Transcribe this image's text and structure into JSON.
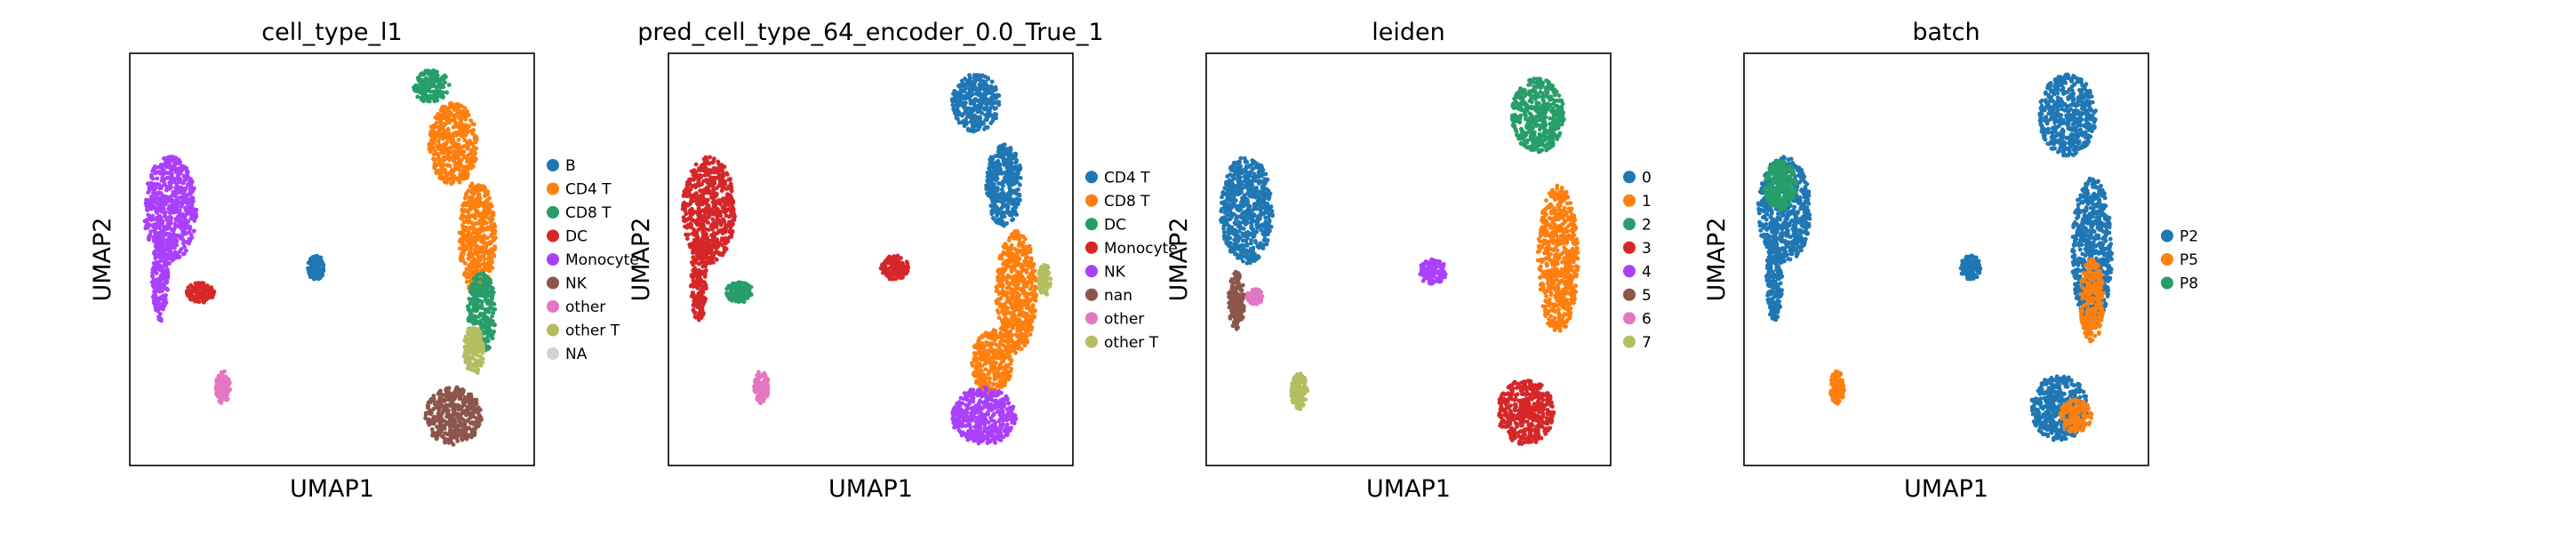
{
  "figure": {
    "background": "#ffffff"
  },
  "chart_data": [
    {
      "type": "scatter",
      "title": "cell_type_l1",
      "xlabel": "UMAP1",
      "ylabel": "UMAP2",
      "legend_position": "right",
      "grid": false,
      "ticks": false,
      "legend": [
        {
          "label": "B",
          "color": "#1f77b4"
        },
        {
          "label": "CD4 T",
          "color": "#ff7f0e"
        },
        {
          "label": "CD8 T",
          "color": "#279e68"
        },
        {
          "label": "DC",
          "color": "#d62728"
        },
        {
          "label": "Monocyte",
          "color": "#aa40fc"
        },
        {
          "label": "NK",
          "color": "#8c564b"
        },
        {
          "label": "other",
          "color": "#e377c2"
        },
        {
          "label": "other T",
          "color": "#b5bd61"
        },
        {
          "label": "NA",
          "color": "#d3d3d3"
        }
      ],
      "clusters": [
        {
          "cat": 4,
          "shape": "blob",
          "cx": 0.1,
          "cy": 0.62,
          "rx": 0.065,
          "ry": 0.13
        },
        {
          "cat": 4,
          "shape": "blob",
          "cx": 0.075,
          "cy": 0.45,
          "rx": 0.02,
          "ry": 0.1
        },
        {
          "cat": 3,
          "shape": "blob",
          "cx": 0.175,
          "cy": 0.42,
          "rx": 0.035,
          "ry": 0.025
        },
        {
          "cat": 0,
          "shape": "blob",
          "cx": 0.46,
          "cy": 0.48,
          "rx": 0.022,
          "ry": 0.03
        },
        {
          "cat": 6,
          "shape": "blob",
          "cx": 0.23,
          "cy": 0.19,
          "rx": 0.018,
          "ry": 0.04
        },
        {
          "cat": 2,
          "shape": "blob",
          "cx": 0.745,
          "cy": 0.92,
          "rx": 0.045,
          "ry": 0.04
        },
        {
          "cat": 1,
          "shape": "blob",
          "cx": 0.8,
          "cy": 0.78,
          "rx": 0.06,
          "ry": 0.1
        },
        {
          "cat": 1,
          "shape": "blob",
          "cx": 0.86,
          "cy": 0.55,
          "rx": 0.045,
          "ry": 0.14
        },
        {
          "cat": 2,
          "shape": "blob",
          "cx": 0.87,
          "cy": 0.37,
          "rx": 0.035,
          "ry": 0.1
        },
        {
          "cat": 7,
          "shape": "blob",
          "cx": 0.85,
          "cy": 0.28,
          "rx": 0.025,
          "ry": 0.06
        },
        {
          "cat": 5,
          "shape": "blob",
          "cx": 0.8,
          "cy": 0.12,
          "rx": 0.07,
          "ry": 0.07
        }
      ]
    },
    {
      "type": "scatter",
      "title": "pred_cell_type_64_encoder_0.0_True_1",
      "xlabel": "UMAP1",
      "ylabel": "UMAP2",
      "legend_position": "right",
      "grid": false,
      "ticks": false,
      "legend": [
        {
          "label": "CD4 T",
          "color": "#1f77b4"
        },
        {
          "label": "CD8 T",
          "color": "#ff7f0e"
        },
        {
          "label": "DC",
          "color": "#279e68"
        },
        {
          "label": "Monocyte",
          "color": "#d62728"
        },
        {
          "label": "NK",
          "color": "#aa40fc"
        },
        {
          "label": "nan",
          "color": "#8c564b"
        },
        {
          "label": "other",
          "color": "#e377c2"
        },
        {
          "label": "other T",
          "color": "#b5bd61"
        }
      ],
      "clusters": [
        {
          "cat": 3,
          "shape": "blob",
          "cx": 0.1,
          "cy": 0.62,
          "rx": 0.065,
          "ry": 0.13
        },
        {
          "cat": 3,
          "shape": "blob",
          "cx": 0.075,
          "cy": 0.45,
          "rx": 0.02,
          "ry": 0.1
        },
        {
          "cat": 2,
          "shape": "blob",
          "cx": 0.175,
          "cy": 0.42,
          "rx": 0.035,
          "ry": 0.025
        },
        {
          "cat": 3,
          "shape": "blob",
          "cx": 0.56,
          "cy": 0.48,
          "rx": 0.035,
          "ry": 0.03
        },
        {
          "cat": 6,
          "shape": "blob",
          "cx": 0.23,
          "cy": 0.19,
          "rx": 0.018,
          "ry": 0.04
        },
        {
          "cat": 0,
          "shape": "blob",
          "cx": 0.76,
          "cy": 0.88,
          "rx": 0.06,
          "ry": 0.07
        },
        {
          "cat": 0,
          "shape": "blob",
          "cx": 0.83,
          "cy": 0.68,
          "rx": 0.045,
          "ry": 0.1
        },
        {
          "cat": 1,
          "shape": "blob",
          "cx": 0.86,
          "cy": 0.42,
          "rx": 0.05,
          "ry": 0.15
        },
        {
          "cat": 1,
          "shape": "blob",
          "cx": 0.8,
          "cy": 0.25,
          "rx": 0.05,
          "ry": 0.08
        },
        {
          "cat": 4,
          "shape": "blob",
          "cx": 0.78,
          "cy": 0.12,
          "rx": 0.08,
          "ry": 0.07
        },
        {
          "cat": 7,
          "shape": "blob",
          "cx": 0.93,
          "cy": 0.45,
          "rx": 0.015,
          "ry": 0.04
        }
      ]
    },
    {
      "type": "scatter",
      "title": "leiden",
      "xlabel": "UMAP1",
      "ylabel": "UMAP2",
      "legend_position": "right",
      "grid": false,
      "ticks": false,
      "legend": [
        {
          "label": "0",
          "color": "#1f77b4"
        },
        {
          "label": "1",
          "color": "#ff7f0e"
        },
        {
          "label": "2",
          "color": "#279e68"
        },
        {
          "label": "3",
          "color": "#d62728"
        },
        {
          "label": "4",
          "color": "#aa40fc"
        },
        {
          "label": "5",
          "color": "#8c564b"
        },
        {
          "label": "6",
          "color": "#e377c2"
        },
        {
          "label": "7",
          "color": "#b5bd61"
        }
      ],
      "clusters": [
        {
          "cat": 0,
          "shape": "blob",
          "cx": 0.1,
          "cy": 0.62,
          "rx": 0.065,
          "ry": 0.13
        },
        {
          "cat": 5,
          "shape": "blob",
          "cx": 0.075,
          "cy": 0.4,
          "rx": 0.02,
          "ry": 0.07
        },
        {
          "cat": 6,
          "shape": "blob",
          "cx": 0.12,
          "cy": 0.41,
          "rx": 0.02,
          "ry": 0.02
        },
        {
          "cat": 4,
          "shape": "blob",
          "cx": 0.56,
          "cy": 0.47,
          "rx": 0.035,
          "ry": 0.03
        },
        {
          "cat": 7,
          "shape": "blob",
          "cx": 0.23,
          "cy": 0.18,
          "rx": 0.02,
          "ry": 0.045
        },
        {
          "cat": 2,
          "shape": "blob",
          "cx": 0.82,
          "cy": 0.85,
          "rx": 0.065,
          "ry": 0.09
        },
        {
          "cat": 1,
          "shape": "blob",
          "cx": 0.87,
          "cy": 0.5,
          "rx": 0.05,
          "ry": 0.18
        },
        {
          "cat": 3,
          "shape": "blob",
          "cx": 0.79,
          "cy": 0.13,
          "rx": 0.07,
          "ry": 0.08
        }
      ]
    },
    {
      "type": "scatter",
      "title": "batch",
      "xlabel": "UMAP1",
      "ylabel": "UMAP2",
      "legend_position": "right",
      "grid": false,
      "ticks": false,
      "legend": [
        {
          "label": "P2",
          "color": "#1f77b4"
        },
        {
          "label": "P5",
          "color": "#ff7f0e"
        },
        {
          "label": "P8",
          "color": "#279e68"
        }
      ],
      "clusters": [
        {
          "cat": 0,
          "shape": "blob",
          "cx": 0.1,
          "cy": 0.62,
          "rx": 0.065,
          "ry": 0.13
        },
        {
          "cat": 2,
          "shape": "blob",
          "cx": 0.09,
          "cy": 0.68,
          "rx": 0.04,
          "ry": 0.06
        },
        {
          "cat": 0,
          "shape": "blob",
          "cx": 0.075,
          "cy": 0.45,
          "rx": 0.02,
          "ry": 0.1
        },
        {
          "cat": 0,
          "shape": "blob",
          "cx": 0.56,
          "cy": 0.48,
          "rx": 0.025,
          "ry": 0.03
        },
        {
          "cat": 1,
          "shape": "blob",
          "cx": 0.23,
          "cy": 0.19,
          "rx": 0.018,
          "ry": 0.04
        },
        {
          "cat": 0,
          "shape": "blob",
          "cx": 0.8,
          "cy": 0.85,
          "rx": 0.07,
          "ry": 0.1
        },
        {
          "cat": 0,
          "shape": "blob",
          "cx": 0.86,
          "cy": 0.52,
          "rx": 0.05,
          "ry": 0.18
        },
        {
          "cat": 1,
          "shape": "blob",
          "cx": 0.86,
          "cy": 0.4,
          "rx": 0.03,
          "ry": 0.1
        },
        {
          "cat": 0,
          "shape": "blob",
          "cx": 0.78,
          "cy": 0.14,
          "rx": 0.07,
          "ry": 0.08
        },
        {
          "cat": 1,
          "shape": "blob",
          "cx": 0.82,
          "cy": 0.12,
          "rx": 0.04,
          "ry": 0.04
        }
      ]
    }
  ]
}
